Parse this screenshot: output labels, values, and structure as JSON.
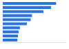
{
  "chart_data": {
    "type": "bar",
    "orientation": "horizontal",
    "categories": [
      null,
      null,
      null,
      null,
      null,
      null,
      null,
      null,
      null,
      null
    ],
    "values": [
      84,
      76,
      64,
      46,
      44,
      38,
      27,
      25,
      24,
      23
    ],
    "color": "#2876dd",
    "xlim": [
      0,
      100
    ],
    "grid": false,
    "tick_labels": false
  }
}
